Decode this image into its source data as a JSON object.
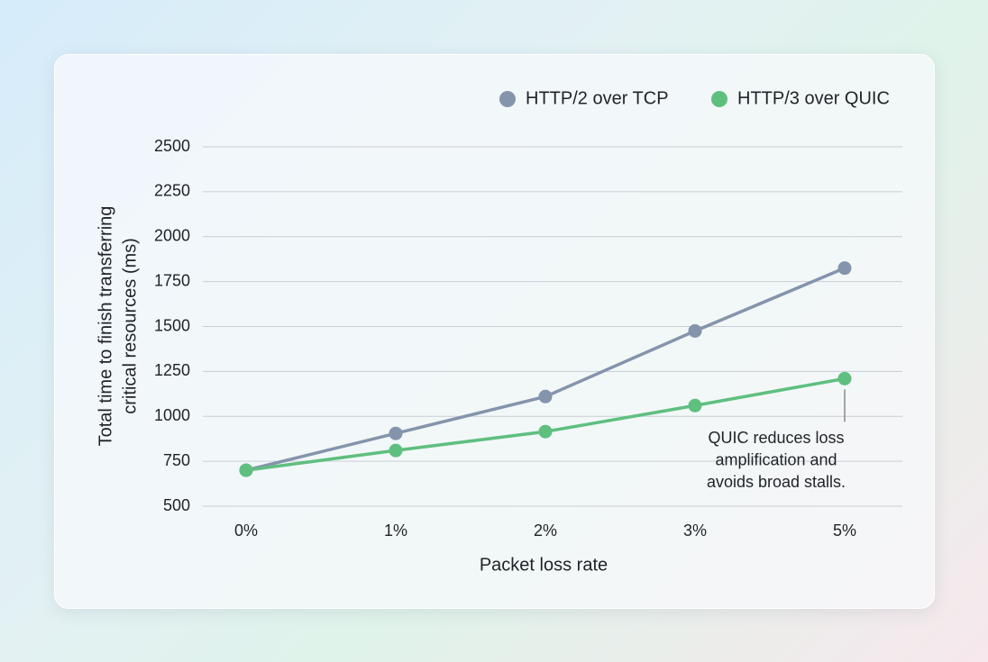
{
  "chart_data": {
    "type": "line",
    "x_label": "Packet loss rate",
    "y_label": [
      "Total time to finish transferring",
      "critical resources (ms)"
    ],
    "categories": [
      "0%",
      "1%",
      "2%",
      "3%",
      "5%"
    ],
    "series": [
      {
        "name": "HTTP/2 over TCP",
        "color": "#8494ab",
        "values": [
          700,
          905,
          1110,
          1475,
          1825
        ]
      },
      {
        "name": "HTTP/3 over QUIC",
        "color": "#5fbf7f",
        "values": [
          700,
          810,
          915,
          1060,
          1210
        ]
      }
    ],
    "ylim": [
      500,
      2500
    ],
    "yticks": [
      500,
      750,
      1000,
      1250,
      1500,
      1750,
      2000,
      2250,
      2500
    ],
    "grid": true,
    "legend": "top-right",
    "annotation": {
      "series": 1,
      "point": 4,
      "lines": [
        "QUIC reduces loss",
        "amplification and",
        "avoids broad stalls."
      ]
    }
  }
}
